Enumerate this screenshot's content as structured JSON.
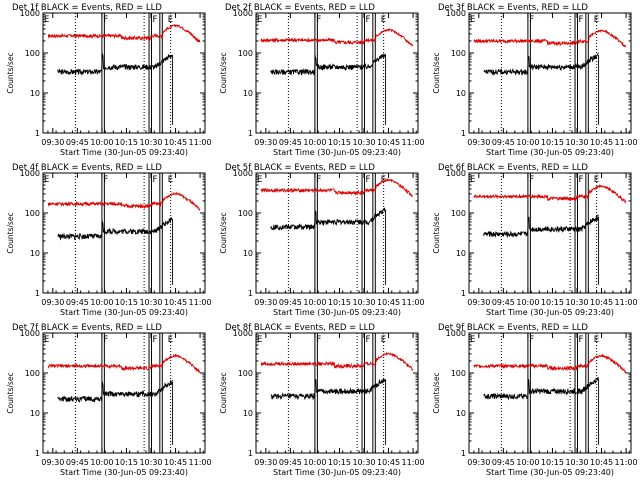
{
  "figure": {
    "x_ticks": [
      "09:30",
      "09:45",
      "10:00",
      "10:15",
      "10:30",
      "10:45",
      "11:00"
    ],
    "y_ticks": [
      "1",
      "10",
      "100",
      "1000"
    ],
    "ylabel": "Counts/sec",
    "xlabel": "Start Time (30-Jun-05 09:23:40)",
    "marker_labels": [
      "E",
      "F",
      "F",
      "E"
    ]
  },
  "chart_data": [
    {
      "type": "line",
      "title": "Det 1f BLACK = Events, RED = LLD",
      "xlabel": "Start Time (30-Jun-05 09:23:40)",
      "ylabel": "Counts/sec",
      "xlim": [
        9.4,
        11.05
      ],
      "ylim": [
        1,
        1000
      ],
      "yscale": "log",
      "red_level": 270,
      "black_level": 45
    },
    {
      "type": "line",
      "title": "Det 2f BLACK = Events, RED = LLD",
      "xlabel": "Start Time (30-Jun-05 09:23:40)",
      "ylabel": "Counts/sec",
      "xlim": [
        9.4,
        11.05
      ],
      "ylim": [
        1,
        1000
      ],
      "yscale": "log",
      "red_level": 210,
      "black_level": 45
    },
    {
      "type": "line",
      "title": "Det 3f BLACK = Events, RED = LLD",
      "xlabel": "Start Time (30-Jun-05 09:23:40)",
      "ylabel": "Counts/sec",
      "xlim": [
        9.4,
        11.05
      ],
      "ylim": [
        1,
        1000
      ],
      "yscale": "log",
      "red_level": 200,
      "black_level": 45
    },
    {
      "type": "line",
      "title": "Det 4f BLACK = Events, RED = LLD",
      "xlabel": "Start Time (30-Jun-05 09:23:40)",
      "ylabel": "Counts/sec",
      "xlim": [
        9.4,
        11.05
      ],
      "ylim": [
        1,
        1000
      ],
      "yscale": "log",
      "red_level": 170,
      "black_level": 35
    },
    {
      "type": "line",
      "title": "Det 5f BLACK = Events, RED = LLD",
      "xlabel": "Start Time (30-Jun-05 09:23:40)",
      "ylabel": "Counts/sec",
      "xlim": [
        9.4,
        11.05
      ],
      "ylim": [
        1,
        1000
      ],
      "yscale": "log",
      "red_level": 370,
      "black_level": 60
    },
    {
      "type": "line",
      "title": "Det 6f BLACK = Events, RED = LLD",
      "xlabel": "Start Time (30-Jun-05 09:23:40)",
      "ylabel": "Counts/sec",
      "xlim": [
        9.4,
        11.05
      ],
      "ylim": [
        1,
        1000
      ],
      "yscale": "log",
      "red_level": 260,
      "black_level": 40
    },
    {
      "type": "line",
      "title": "Det 7f BLACK = Events, RED = LLD",
      "xlabel": "Start Time (30-Jun-05 09:23:40)",
      "ylabel": "Counts/sec",
      "xlim": [
        9.4,
        11.05
      ],
      "ylim": [
        1,
        1000
      ],
      "yscale": "log",
      "red_level": 150,
      "black_level": 30
    },
    {
      "type": "line",
      "title": "Det 8f BLACK = Events, RED = LLD",
      "xlabel": "Start Time (30-Jun-05 09:23:40)",
      "ylabel": "Counts/sec",
      "xlim": [
        9.4,
        11.05
      ],
      "ylim": [
        1,
        1000
      ],
      "yscale": "log",
      "red_level": 170,
      "black_level": 35
    },
    {
      "type": "line",
      "title": "Det 9f BLACK = Events, RED = LLD",
      "xlabel": "Start Time (30-Jun-05 09:23:40)",
      "ylabel": "Counts/sec",
      "xlim": [
        9.4,
        11.05
      ],
      "ylim": [
        1,
        1000
      ],
      "yscale": "log",
      "red_level": 150,
      "black_level": 35
    }
  ],
  "markers": {
    "solid_lines_hours": [
      10.0,
      10.025,
      10.48,
      10.505,
      10.59,
      10.615
    ],
    "dotted_lines_hours": [
      9.73,
      10.43,
      10.7
    ],
    "label_positions_hours": [
      9.41,
      10.015,
      10.515,
      10.67
    ]
  },
  "colors": {
    "red": "#e00000",
    "black": "#000000"
  }
}
